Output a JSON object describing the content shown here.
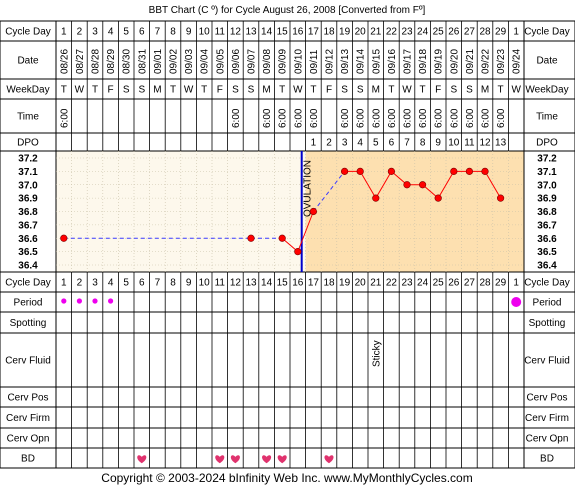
{
  "title": "BBT Chart (C º) for Cycle August 26, 2008  [Converted from Fº]",
  "footer": "Copyright © 2003-2024 bInfinity Web Inc.    www.MyMonthlyCycles.com",
  "labels": {
    "cycle_day": "Cycle Day",
    "date": "Date",
    "weekday": "WeekDay",
    "time": "Time",
    "dpo": "DPO",
    "period": "Period",
    "spotting": "Spotting",
    "cerv_fluid": "Cerv Fluid",
    "cerv_pos": "Cerv Pos",
    "cerv_firm": "Cerv Firm",
    "cerv_opn": "Cerv Opn",
    "bd": "BD"
  },
  "colors": {
    "grid_bg": "#fdf8ec",
    "post_ov_bg": "#fde0b0",
    "line": "#ff0000",
    "point": "#ff0000",
    "dashed": "#3a3aff",
    "ovulation": "#0000cc",
    "period": "#ee00ee",
    "heart": "#e0336e"
  },
  "chart_data": {
    "type": "line",
    "title": "BBT Chart (C º) for Cycle August 26, 2008  [Converted from Fº]",
    "cycle_days": [
      "1",
      "2",
      "3",
      "4",
      "5",
      "6",
      "7",
      "8",
      "9",
      "10",
      "11",
      "12",
      "13",
      "14",
      "15",
      "16",
      "17",
      "18",
      "19",
      "20",
      "21",
      "22",
      "23",
      "24",
      "25",
      "26",
      "27",
      "28",
      "29",
      "1"
    ],
    "dates": [
      "08/26",
      "08/27",
      "08/28",
      "08/29",
      "08/30",
      "08/31",
      "09/01",
      "09/02",
      "09/03",
      "09/04",
      "09/05",
      "09/06",
      "09/07",
      "09/08",
      "09/09",
      "09/10",
      "09/11",
      "09/12",
      "09/13",
      "09/14",
      "09/15",
      "09/16",
      "09/17",
      "09/18",
      "09/19",
      "09/20",
      "09/21",
      "09/22",
      "09/23",
      "09/24"
    ],
    "weekdays": [
      "T",
      "W",
      "T",
      "F",
      "S",
      "S",
      "M",
      "T",
      "W",
      "T",
      "F",
      "S",
      "S",
      "M",
      "T",
      "W",
      "T",
      "F",
      "S",
      "S",
      "M",
      "T",
      "W",
      "T",
      "F",
      "S",
      "S",
      "M",
      "T",
      "W"
    ],
    "times": [
      "6:00",
      "",
      "",
      "",
      "",
      "",
      "",
      "",
      "",
      "",
      "",
      "6:00",
      "",
      "6:00",
      "6:00",
      "6:00",
      "6:00",
      "",
      "6:00",
      "6:00",
      "6:00",
      "6:00",
      "6:00",
      "6:00",
      "6:00",
      "6:00",
      "6:00",
      "6:00",
      "6:00",
      ""
    ],
    "dpo": [
      "",
      "",
      "",
      "",
      "",
      "",
      "",
      "",
      "",
      "",
      "",
      "",
      "",
      "",
      "",
      "",
      "1",
      "2",
      "3",
      "4",
      "5",
      "6",
      "7",
      "8",
      "9",
      "10",
      "11",
      "12",
      "13",
      ""
    ],
    "temperatures": [
      36.6,
      null,
      null,
      null,
      null,
      null,
      null,
      null,
      null,
      null,
      null,
      null,
      36.6,
      null,
      36.6,
      36.5,
      36.8,
      null,
      37.1,
      37.1,
      36.9,
      37.1,
      37.0,
      37.0,
      36.9,
      37.1,
      37.1,
      37.1,
      36.9,
      null
    ],
    "y_ticks": [
      "37.2",
      "37.1",
      "37.0",
      "36.9",
      "36.8",
      "36.7",
      "36.6",
      "36.5",
      "36.4"
    ],
    "ylim": [
      36.4,
      37.2
    ],
    "ovulation_day": 16,
    "ovulation_label": "OVULATION",
    "period": [
      "dot",
      "dot",
      "dot",
      "dot",
      "",
      "",
      "",
      "",
      "",
      "",
      "",
      "",
      "",
      "",
      "",
      "",
      "",
      "",
      "",
      "",
      "",
      "",
      "",
      "",
      "",
      "",
      "",
      "",
      "",
      "big"
    ],
    "spotting": [],
    "cerv_fluid": [
      "",
      "",
      "",
      "",
      "",
      "",
      "",
      "",
      "",
      "",
      "",
      "",
      "",
      "",
      "",
      "",
      "",
      "",
      "",
      "",
      "Sticky",
      "",
      "",
      "",
      "",
      "",
      "",
      "",
      "",
      ""
    ],
    "bd": [
      6,
      11,
      12,
      14,
      15,
      18
    ]
  }
}
